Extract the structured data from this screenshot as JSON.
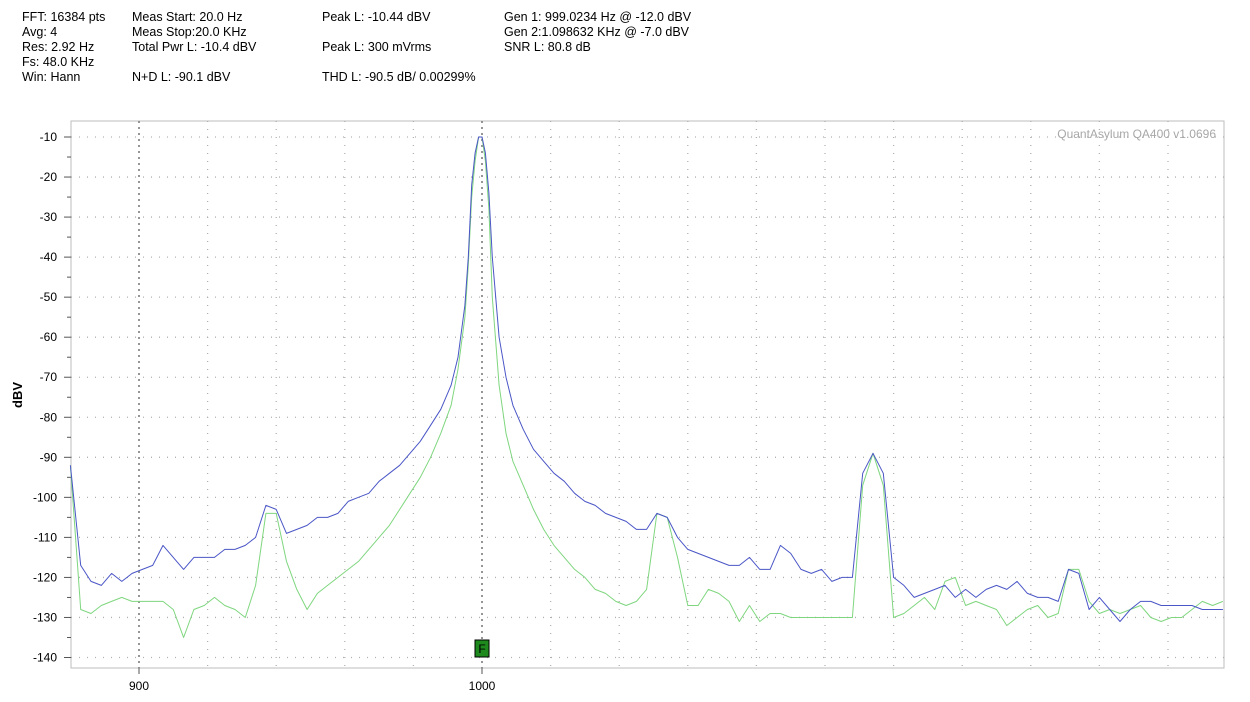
{
  "header": {
    "fft": "FFT: 16384 pts",
    "avg": "Avg: 4",
    "res": "Res: 2.92 Hz",
    "fs": "Fs: 48.0 KHz",
    "win": "Win: Hann",
    "meas_start": "Meas Start: 20.0 Hz",
    "meas_stop": "Meas Stop:20.0 KHz",
    "total_pwr": "Total Pwr L: -10.4 dBV",
    "nd": "N+D L: -90.1 dBV",
    "peak_l_dbv": "Peak L: -10.44 dBV",
    "peak_l_mv": "Peak L: 300 mVrms",
    "thd": "THD L: -90.5 dB/ 0.00299%",
    "gen1": "Gen 1: 999.0234 Hz @ -12.0  dBV",
    "gen2": "Gen 2:1.098632 KHz @ -7.0  dBV",
    "snr": "SNR L: 80.8 dB"
  },
  "watermark": "QuantAsylum QA400 v1.0696",
  "marker_label": "F",
  "colors": {
    "background": "#ffffff",
    "series_blue": "#4a56c6",
    "series_green": "#7fd67f",
    "grid": "#b0b0b0",
    "marker_fill": "#1e8a1e"
  },
  "chart_data": {
    "type": "line",
    "xlim": [
      880,
      1216
    ],
    "ylim": [
      -144,
      -6
    ],
    "ylabel": "dBV",
    "xlabel": "",
    "x_ticks": [
      900,
      1000
    ],
    "y_ticks": [
      -10,
      -20,
      -30,
      -40,
      -50,
      -60,
      -70,
      -80,
      -90,
      -100,
      -110,
      -120,
      -130,
      -140
    ],
    "grid": true,
    "marker_x": 1000,
    "series": [
      {
        "color": "#4a56c6",
        "points": [
          [
            880,
            -92
          ],
          [
            883,
            -117
          ],
          [
            886,
            -121
          ],
          [
            889,
            -122
          ],
          [
            892,
            -119
          ],
          [
            895,
            -121
          ],
          [
            898,
            -119
          ],
          [
            901,
            -118
          ],
          [
            904,
            -117
          ],
          [
            907,
            -112
          ],
          [
            910,
            -115
          ],
          [
            913,
            -118
          ],
          [
            916,
            -115
          ],
          [
            919,
            -115
          ],
          [
            922,
            -115
          ],
          [
            925,
            -113
          ],
          [
            928,
            -113
          ],
          [
            931,
            -112
          ],
          [
            934,
            -110
          ],
          [
            937,
            -102
          ],
          [
            940,
            -103
          ],
          [
            943,
            -109
          ],
          [
            946,
            -108
          ],
          [
            949,
            -107
          ],
          [
            952,
            -105
          ],
          [
            955,
            -105
          ],
          [
            958,
            -104
          ],
          [
            961,
            -101
          ],
          [
            964,
            -100
          ],
          [
            967,
            -99
          ],
          [
            970,
            -96
          ],
          [
            973,
            -94
          ],
          [
            976,
            -92
          ],
          [
            979,
            -89
          ],
          [
            982,
            -86
          ],
          [
            985,
            -82
          ],
          [
            988,
            -78
          ],
          [
            991,
            -72
          ],
          [
            993,
            -65
          ],
          [
            995,
            -52
          ],
          [
            996,
            -40
          ],
          [
            997,
            -22
          ],
          [
            998,
            -14
          ],
          [
            999,
            -10
          ],
          [
            1000,
            -10
          ],
          [
            1001,
            -14
          ],
          [
            1002,
            -24
          ],
          [
            1003,
            -40
          ],
          [
            1005,
            -60
          ],
          [
            1007,
            -70
          ],
          [
            1009,
            -77
          ],
          [
            1012,
            -83
          ],
          [
            1015,
            -88
          ],
          [
            1018,
            -91
          ],
          [
            1021,
            -94
          ],
          [
            1024,
            -96
          ],
          [
            1027,
            -99
          ],
          [
            1030,
            -101
          ],
          [
            1033,
            -102
          ],
          [
            1036,
            -104
          ],
          [
            1039,
            -105
          ],
          [
            1042,
            -106
          ],
          [
            1045,
            -108
          ],
          [
            1048,
            -108
          ],
          [
            1051,
            -104
          ],
          [
            1054,
            -105
          ],
          [
            1057,
            -110
          ],
          [
            1060,
            -113
          ],
          [
            1063,
            -114
          ],
          [
            1066,
            -115
          ],
          [
            1069,
            -116
          ],
          [
            1072,
            -117
          ],
          [
            1075,
            -117
          ],
          [
            1078,
            -115
          ],
          [
            1081,
            -118
          ],
          [
            1084,
            -118
          ],
          [
            1087,
            -112
          ],
          [
            1090,
            -114
          ],
          [
            1093,
            -118
          ],
          [
            1096,
            -119
          ],
          [
            1099,
            -118
          ],
          [
            1102,
            -121
          ],
          [
            1105,
            -120
          ],
          [
            1108,
            -120
          ],
          [
            1111,
            -94
          ],
          [
            1114,
            -89
          ],
          [
            1117,
            -94
          ],
          [
            1120,
            -120
          ],
          [
            1123,
            -122
          ],
          [
            1126,
            -125
          ],
          [
            1129,
            -124
          ],
          [
            1132,
            -123
          ],
          [
            1135,
            -122
          ],
          [
            1138,
            -125
          ],
          [
            1141,
            -123
          ],
          [
            1144,
            -125
          ],
          [
            1147,
            -123
          ],
          [
            1150,
            -122
          ],
          [
            1153,
            -123
          ],
          [
            1156,
            -121
          ],
          [
            1159,
            -124
          ],
          [
            1162,
            -125
          ],
          [
            1165,
            -125
          ],
          [
            1168,
            -126
          ],
          [
            1171,
            -118
          ],
          [
            1174,
            -119
          ],
          [
            1177,
            -128
          ],
          [
            1180,
            -125
          ],
          [
            1183,
            -128
          ],
          [
            1186,
            -131
          ],
          [
            1189,
            -128
          ],
          [
            1192,
            -126
          ],
          [
            1195,
            -126
          ],
          [
            1198,
            -127
          ],
          [
            1201,
            -127
          ],
          [
            1204,
            -127
          ],
          [
            1207,
            -127
          ],
          [
            1210,
            -128
          ],
          [
            1213,
            -128
          ],
          [
            1216,
            -128
          ]
        ]
      },
      {
        "color": "#7fd67f",
        "points": [
          [
            880,
            -92
          ],
          [
            883,
            -128
          ],
          [
            886,
            -129
          ],
          [
            889,
            -127
          ],
          [
            892,
            -126
          ],
          [
            895,
            -125
          ],
          [
            898,
            -126
          ],
          [
            901,
            -126
          ],
          [
            904,
            -126
          ],
          [
            907,
            -126
          ],
          [
            910,
            -128
          ],
          [
            913,
            -135
          ],
          [
            916,
            -128
          ],
          [
            919,
            -127
          ],
          [
            922,
            -125
          ],
          [
            925,
            -127
          ],
          [
            928,
            -128
          ],
          [
            931,
            -130
          ],
          [
            934,
            -122
          ],
          [
            937,
            -104
          ],
          [
            940,
            -104
          ],
          [
            943,
            -116
          ],
          [
            946,
            -123
          ],
          [
            949,
            -128
          ],
          [
            952,
            -124
          ],
          [
            955,
            -122
          ],
          [
            958,
            -120
          ],
          [
            961,
            -118
          ],
          [
            964,
            -116
          ],
          [
            967,
            -113
          ],
          [
            970,
            -110
          ],
          [
            973,
            -107
          ],
          [
            976,
            -103
          ],
          [
            979,
            -99
          ],
          [
            982,
            -95
          ],
          [
            985,
            -90
          ],
          [
            988,
            -84
          ],
          [
            991,
            -77
          ],
          [
            993,
            -68
          ],
          [
            995,
            -55
          ],
          [
            996,
            -42
          ],
          [
            997,
            -25
          ],
          [
            998,
            -16
          ],
          [
            999,
            -10
          ],
          [
            1000,
            -10
          ],
          [
            1001,
            -16
          ],
          [
            1002,
            -28
          ],
          [
            1003,
            -50
          ],
          [
            1005,
            -72
          ],
          [
            1007,
            -84
          ],
          [
            1009,
            -91
          ],
          [
            1012,
            -97
          ],
          [
            1015,
            -103
          ],
          [
            1018,
            -108
          ],
          [
            1021,
            -112
          ],
          [
            1024,
            -115
          ],
          [
            1027,
            -118
          ],
          [
            1030,
            -120
          ],
          [
            1033,
            -123
          ],
          [
            1036,
            -124
          ],
          [
            1039,
            -126
          ],
          [
            1042,
            -127
          ],
          [
            1045,
            -126
          ],
          [
            1048,
            -123
          ],
          [
            1051,
            -104
          ],
          [
            1054,
            -105
          ],
          [
            1057,
            -115
          ],
          [
            1060,
            -127
          ],
          [
            1063,
            -127
          ],
          [
            1066,
            -123
          ],
          [
            1069,
            -124
          ],
          [
            1072,
            -126
          ],
          [
            1075,
            -131
          ],
          [
            1078,
            -127
          ],
          [
            1081,
            -131
          ],
          [
            1084,
            -129
          ],
          [
            1087,
            -129
          ],
          [
            1090,
            -130
          ],
          [
            1093,
            -130
          ],
          [
            1096,
            -130
          ],
          [
            1099,
            -130
          ],
          [
            1102,
            -130
          ],
          [
            1105,
            -130
          ],
          [
            1108,
            -130
          ],
          [
            1111,
            -97
          ],
          [
            1114,
            -89
          ],
          [
            1117,
            -97
          ],
          [
            1120,
            -130
          ],
          [
            1123,
            -129
          ],
          [
            1126,
            -127
          ],
          [
            1129,
            -125
          ],
          [
            1132,
            -128
          ],
          [
            1135,
            -121
          ],
          [
            1138,
            -120
          ],
          [
            1141,
            -127
          ],
          [
            1144,
            -126
          ],
          [
            1147,
            -127
          ],
          [
            1150,
            -128
          ],
          [
            1153,
            -132
          ],
          [
            1156,
            -130
          ],
          [
            1159,
            -128
          ],
          [
            1162,
            -127
          ],
          [
            1165,
            -130
          ],
          [
            1168,
            -129
          ],
          [
            1171,
            -118
          ],
          [
            1174,
            -118
          ],
          [
            1177,
            -126
          ],
          [
            1180,
            -129
          ],
          [
            1183,
            -128
          ],
          [
            1186,
            -129
          ],
          [
            1189,
            -128
          ],
          [
            1192,
            -127
          ],
          [
            1195,
            -130
          ],
          [
            1198,
            -131
          ],
          [
            1201,
            -130
          ],
          [
            1204,
            -130
          ],
          [
            1207,
            -128
          ],
          [
            1210,
            -126
          ],
          [
            1213,
            -127
          ],
          [
            1216,
            -126
          ]
        ]
      }
    ]
  }
}
